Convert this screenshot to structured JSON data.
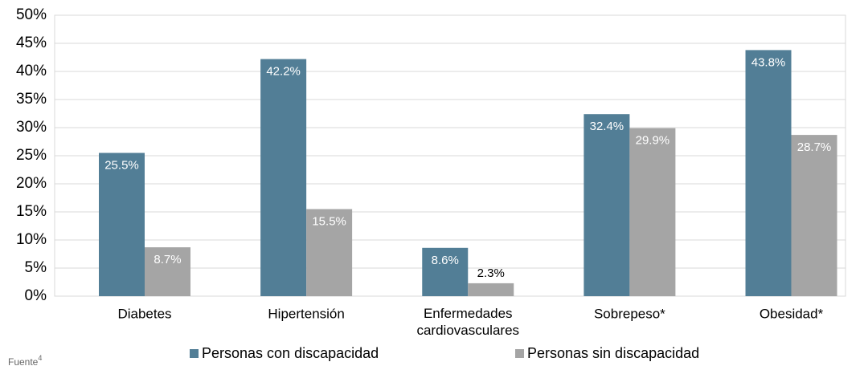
{
  "chart_data": {
    "type": "bar",
    "categories": [
      "Diabetes",
      "Hipertensión",
      "Enfermedades cardiovasculares",
      "Sobrepeso*",
      "Obesidad*"
    ],
    "series": [
      {
        "name": "Personas con discapacidad",
        "color": "#527e96",
        "values": [
          25.5,
          42.2,
          8.6,
          32.4,
          43.8
        ],
        "value_labels": [
          "25.5%",
          "42.2%",
          "8.6%",
          "32.4%",
          "43.8%"
        ]
      },
      {
        "name": "Personas sin discapacidad",
        "color": "#a5a5a5",
        "values": [
          8.7,
          15.5,
          2.3,
          29.9,
          28.7
        ],
        "value_labels": [
          "8.7%",
          "15.5%",
          "2.3%",
          "29.9%",
          "28.7%"
        ]
      }
    ],
    "ylim": [
      0,
      50
    ],
    "yticks": [
      {
        "value": 0,
        "label": "0%"
      },
      {
        "value": 5,
        "label": "5%"
      },
      {
        "value": 10,
        "label": "10%"
      },
      {
        "value": 15,
        "label": "15%"
      },
      {
        "value": 20,
        "label": "20%"
      },
      {
        "value": 25,
        "label": "25%"
      },
      {
        "value": 30,
        "label": "30%"
      },
      {
        "value": 35,
        "label": "35%"
      },
      {
        "value": 40,
        "label": "40%"
      },
      {
        "value": 45,
        "label": "45%"
      },
      {
        "value": 50,
        "label": "50%"
      }
    ],
    "grid": true,
    "legend": "bottom",
    "source": "Fuente",
    "source_ref": "4"
  }
}
